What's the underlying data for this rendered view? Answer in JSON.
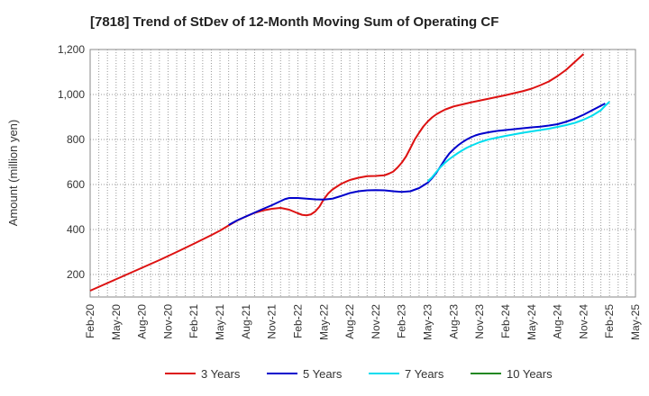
{
  "chart_data": {
    "type": "line",
    "title": "[7818]  Trend of StDev of 12-Month Moving Sum of Operating CF",
    "xlabel": "",
    "ylabel": "Amount (million yen)",
    "ylim": [
      100,
      1200
    ],
    "yticks": [
      200,
      400,
      600,
      800,
      "1,000",
      "1,200"
    ],
    "ytick_values": [
      200,
      400,
      600,
      800,
      1000,
      1200
    ],
    "xticks": [
      "Feb-20",
      "May-20",
      "Aug-20",
      "Nov-20",
      "Feb-21",
      "May-21",
      "Aug-21",
      "Nov-21",
      "Feb-22",
      "May-22",
      "Aug-22",
      "Nov-22",
      "Feb-23",
      "May-23",
      "Aug-23",
      "Nov-23",
      "Feb-24",
      "May-24",
      "Aug-24",
      "Nov-24",
      "Feb-25",
      "May-25"
    ],
    "grid": true,
    "legend_position": "bottom",
    "series": [
      {
        "name": "3 Years",
        "color": "#dd1111",
        "points": [
          [
            0,
            128
          ],
          [
            2,
            162
          ],
          [
            4,
            196
          ],
          [
            6,
            230
          ],
          [
            8,
            264
          ],
          [
            10,
            300
          ],
          [
            12,
            337
          ],
          [
            14,
            375
          ],
          [
            15,
            395
          ],
          [
            16,
            418
          ],
          [
            17,
            440
          ],
          [
            18,
            458
          ],
          [
            19,
            474
          ],
          [
            20,
            485
          ],
          [
            21,
            492
          ],
          [
            22,
            496
          ],
          [
            23,
            488
          ],
          [
            24,
            472
          ],
          [
            24.5,
            465
          ],
          [
            25,
            463
          ],
          [
            25.5,
            467
          ],
          [
            26,
            480
          ],
          [
            26.5,
            502
          ],
          [
            27,
            535
          ],
          [
            27.5,
            560
          ],
          [
            28,
            578
          ],
          [
            29,
            603
          ],
          [
            30,
            620
          ],
          [
            31,
            630
          ],
          [
            32,
            637
          ],
          [
            33,
            638
          ],
          [
            34,
            641
          ],
          [
            34.5,
            648
          ],
          [
            35,
            657
          ],
          [
            35.5,
            675
          ],
          [
            36,
            697
          ],
          [
            36.5,
            725
          ],
          [
            37,
            762
          ],
          [
            37.5,
            800
          ],
          [
            38,
            830
          ],
          [
            38.5,
            858
          ],
          [
            39,
            880
          ],
          [
            39.5,
            898
          ],
          [
            40,
            912
          ],
          [
            40.5,
            923
          ],
          [
            41,
            933
          ],
          [
            42,
            947
          ],
          [
            43,
            956
          ],
          [
            44,
            965
          ],
          [
            45,
            973
          ],
          [
            46,
            981
          ],
          [
            47,
            989
          ],
          [
            48,
            997
          ],
          [
            49,
            1006
          ],
          [
            50,
            1015
          ],
          [
            51,
            1026
          ],
          [
            52,
            1041
          ],
          [
            53,
            1058
          ],
          [
            54,
            1082
          ],
          [
            55,
            1110
          ],
          [
            56,
            1145
          ],
          [
            57,
            1180
          ]
        ]
      },
      {
        "name": "5 Years",
        "color": "#0000cc",
        "points": [
          [
            16,
            420
          ],
          [
            17,
            441
          ],
          [
            18,
            458
          ],
          [
            19,
            475
          ],
          [
            20,
            492
          ],
          [
            21,
            508
          ],
          [
            22,
            526
          ],
          [
            22.5,
            535
          ],
          [
            23,
            540
          ],
          [
            24,
            540
          ],
          [
            25,
            537
          ],
          [
            26,
            534
          ],
          [
            27,
            533
          ],
          [
            28,
            537
          ],
          [
            29,
            549
          ],
          [
            30,
            562
          ],
          [
            31,
            570
          ],
          [
            32,
            574
          ],
          [
            33,
            575
          ],
          [
            34,
            574
          ],
          [
            35,
            570
          ],
          [
            36,
            567
          ],
          [
            37,
            570
          ],
          [
            38,
            584
          ],
          [
            39,
            608
          ],
          [
            39.5,
            628
          ],
          [
            40,
            652
          ],
          [
            40.5,
            682
          ],
          [
            41,
            712
          ],
          [
            41.5,
            738
          ],
          [
            42,
            757
          ],
          [
            42.5,
            774
          ],
          [
            43,
            788
          ],
          [
            43.5,
            800
          ],
          [
            44,
            810
          ],
          [
            44.5,
            818
          ],
          [
            45,
            824
          ],
          [
            46,
            832
          ],
          [
            47,
            838
          ],
          [
            48,
            842
          ],
          [
            49,
            846
          ],
          [
            50,
            850
          ],
          [
            51,
            854
          ],
          [
            52,
            857
          ],
          [
            53,
            862
          ],
          [
            54,
            868
          ],
          [
            55,
            879
          ],
          [
            56,
            893
          ],
          [
            57,
            910
          ],
          [
            58,
            930
          ],
          [
            59,
            950
          ],
          [
            59.5,
            960
          ]
        ]
      },
      {
        "name": "7 Years",
        "color": "#00ddee",
        "points": [
          [
            39,
            614
          ],
          [
            39.5,
            632
          ],
          [
            40,
            656
          ],
          [
            40.5,
            678
          ],
          [
            41,
            697
          ],
          [
            41.5,
            713
          ],
          [
            42,
            727
          ],
          [
            42.5,
            740
          ],
          [
            43,
            752
          ],
          [
            43.5,
            763
          ],
          [
            44,
            772
          ],
          [
            44.5,
            780
          ],
          [
            45,
            788
          ],
          [
            46,
            800
          ],
          [
            47,
            808
          ],
          [
            48,
            816
          ],
          [
            49,
            823
          ],
          [
            50,
            830
          ],
          [
            51,
            836
          ],
          [
            52,
            842
          ],
          [
            53,
            848
          ],
          [
            54,
            856
          ],
          [
            55,
            864
          ],
          [
            56,
            874
          ],
          [
            57,
            888
          ],
          [
            58,
            906
          ],
          [
            59,
            930
          ],
          [
            59.5,
            950
          ],
          [
            60,
            968
          ]
        ]
      },
      {
        "name": "10 Years",
        "color": "#228822",
        "points": []
      }
    ]
  }
}
